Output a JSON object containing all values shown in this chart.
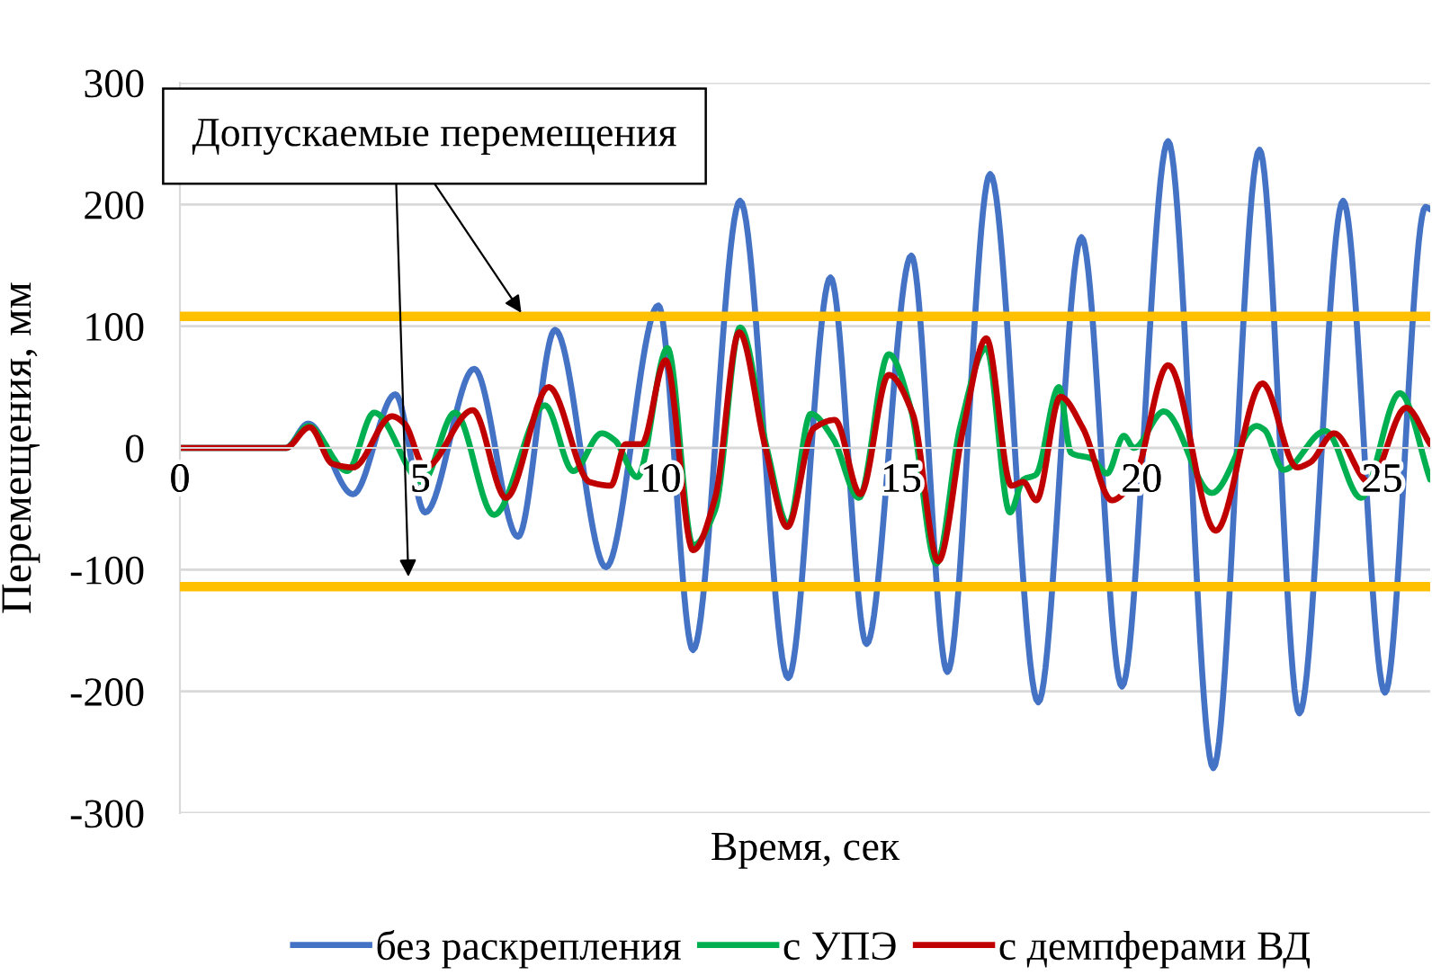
{
  "chart_data": {
    "type": "line",
    "xlabel": "Время, сек",
    "ylabel": "Перемещения, мм",
    "xlim": [
      0,
      26
    ],
    "xticks": [
      0,
      5,
      10,
      15,
      20,
      25
    ],
    "ylim": [
      -300,
      300
    ],
    "yticks": [
      -300,
      -200,
      -100,
      0,
      100,
      200,
      300
    ],
    "grid": "y",
    "legend": "bottom",
    "annotations": [
      {
        "text": "Допускаемые перемещения",
        "x": 7.1,
        "y": 111
      }
    ],
    "ref_lines": [
      {
        "axis": "y",
        "value": 108,
        "color": "#ffc000"
      },
      {
        "axis": "y",
        "value": -114,
        "color": "#ffc000"
      }
    ],
    "series": [
      {
        "name": "без раскрепления",
        "color": "#4472c4",
        "x": [
          0,
          2.2,
          2.67,
          3.6,
          4.48,
          5.1,
          6.12,
          7.03,
          7.8,
          8.86,
          9.95,
          10.67,
          11.65,
          12.65,
          13.53,
          14.28,
          15.21,
          15.96,
          16.85,
          17.85,
          18.75,
          19.59,
          20.55,
          21.49,
          22.45,
          23.28,
          24.19,
          25.06,
          25.9,
          26
        ],
        "values": [
          0,
          0,
          20,
          -38,
          44,
          -53,
          65,
          -73,
          97,
          -98,
          117,
          -166,
          203,
          -189,
          140,
          -161,
          158,
          -184,
          225,
          -209,
          173,
          -196,
          252,
          -263,
          245,
          -218,
          203,
          -201,
          198,
          196
        ]
      },
      {
        "name": "с УПЭ",
        "color": "#00b050",
        "x": [
          0,
          2.2,
          2.67,
          3.48,
          4.04,
          5.04,
          5.72,
          6.53,
          7.59,
          8.18,
          8.77,
          9.05,
          9.51,
          10.14,
          10.67,
          11.13,
          11.65,
          12.21,
          12.65,
          13.12,
          13.58,
          14.12,
          14.74,
          15.2,
          15.73,
          16.23,
          16.77,
          17.26,
          17.54,
          17.8,
          18.28,
          18.53,
          18.97,
          19.28,
          19.63,
          19.84,
          20.46,
          21.46,
          22.39,
          22.55,
          22.95,
          23.82,
          24.56,
          25.37,
          26
        ],
        "values": [
          0,
          0,
          18,
          -19,
          29,
          -28,
          29,
          -55,
          35,
          -19,
          12,
          6,
          -24,
          82,
          -80,
          -51,
          99,
          -1,
          -63,
          28,
          8,
          -41,
          77,
          32,
          -95,
          18,
          82,
          -53,
          -26,
          -22,
          50,
          -4,
          -9,
          -21,
          10,
          0,
          30,
          -37,
          18,
          15,
          -18,
          14,
          -41,
          45,
          -26
        ]
      },
      {
        "name": "с демпферами ВД",
        "color": "#c00000",
        "x": [
          0,
          2.2,
          2.7,
          3.17,
          3.6,
          4.41,
          4.67,
          5.1,
          6.09,
          6.78,
          7.67,
          8.52,
          8.96,
          9.27,
          9.6,
          10.1,
          10.67,
          11.13,
          11.63,
          12.16,
          12.63,
          13.18,
          13.62,
          14.15,
          14.74,
          15.24,
          15.77,
          16.29,
          16.77,
          17.29,
          17.54,
          17.81,
          18.31,
          18.78,
          19.38,
          19.84,
          20.55,
          21.54,
          22.51,
          23.23,
          23.5,
          24.0,
          24.73,
          25.5,
          26
        ],
        "values": [
          0,
          0,
          17,
          -13,
          -16,
          26,
          20,
          -16,
          31,
          -41,
          50,
          -28,
          -31,
          3,
          3,
          72,
          -84,
          -41,
          95,
          3,
          -65,
          16,
          23,
          -38,
          60,
          28,
          -93,
          16,
          90,
          -31,
          -28,
          -43,
          42,
          16,
          -43,
          -26,
          68,
          -68,
          53,
          -16,
          -12,
          12,
          -28,
          33,
          3
        ]
      }
    ]
  }
}
